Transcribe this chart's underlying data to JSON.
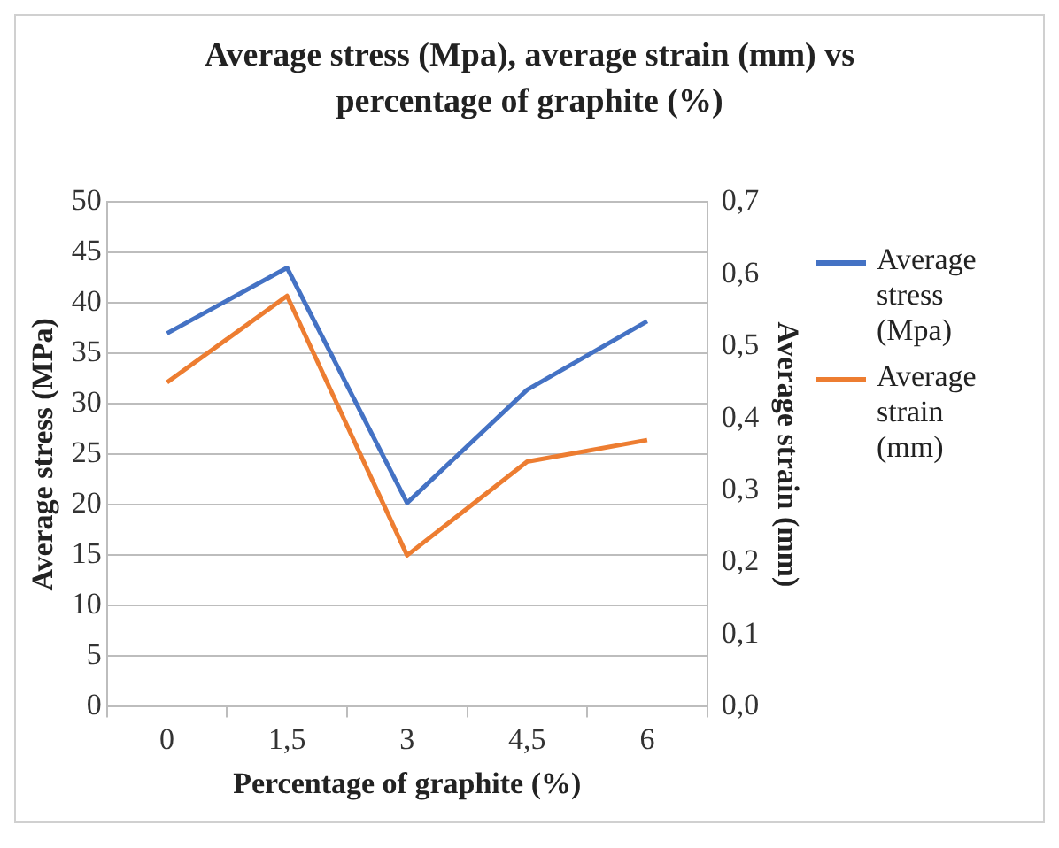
{
  "chart_data": {
    "type": "line",
    "title": "Average stress (Mpa), average strain (mm) vs percentage of graphite (%)",
    "xlabel": "Percentage of graphite (%)",
    "ylabel": "Average stress (MPa)",
    "y2label": "Average strain (mm)",
    "categories": [
      "0",
      "1,5",
      "3",
      "4,5",
      "6"
    ],
    "series": [
      {
        "name": "Average stress (Mpa)",
        "color": "#4472c4",
        "values": [
          37.0,
          43.5,
          20.2,
          31.4,
          38.2
        ]
      },
      {
        "name": "Average strain (mm)",
        "color": "#ed7d31",
        "values": [
          0.45,
          0.57,
          0.21,
          0.34,
          0.37
        ],
        "axis": "y2"
      }
    ],
    "ylim": [
      0,
      50
    ],
    "yticks": [
      0,
      5,
      10,
      15,
      20,
      25,
      30,
      35,
      40,
      45,
      50
    ],
    "y2lim": [
      0,
      0.7
    ],
    "y2ticks": [
      {
        "value": 0,
        "label": "0,0"
      },
      {
        "value": 0.1,
        "label": "0,1"
      },
      {
        "value": 0.2,
        "label": "0,2"
      },
      {
        "value": 0.3,
        "label": "0,3"
      },
      {
        "value": 0.4,
        "label": "0,4"
      },
      {
        "value": 0.5,
        "label": "0,5"
      },
      {
        "value": 0.6,
        "label": "0,6"
      },
      {
        "value": 0.7,
        "label": "0,7"
      }
    ],
    "grid": "y",
    "legend": "right",
    "marker": "none",
    "line_style": "solid"
  }
}
